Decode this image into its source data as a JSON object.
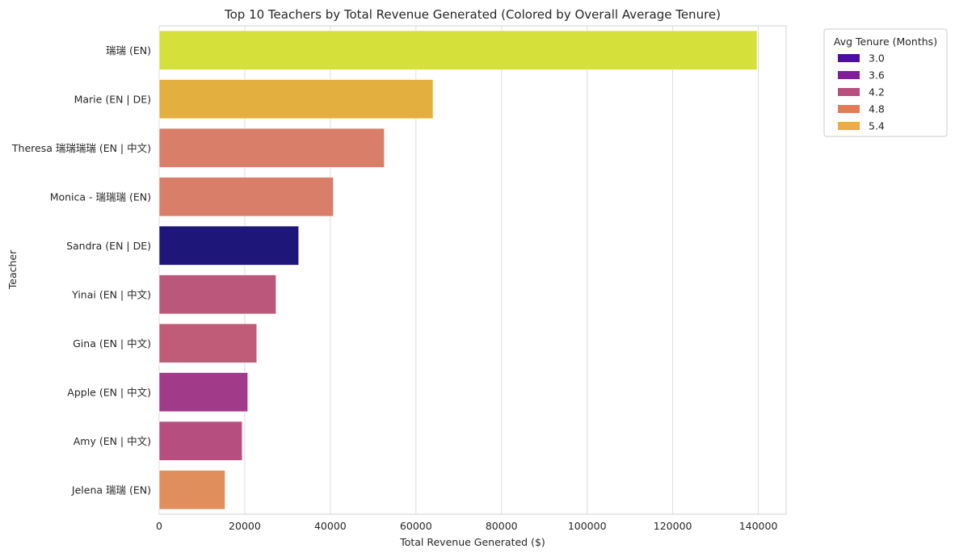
{
  "chart_data": {
    "type": "bar",
    "orientation": "horizontal",
    "title": "Top 10 Teachers by Total Revenue Generated (Colored by Overall Average Tenure)",
    "xlabel": "Total Revenue Generated ($)",
    "ylabel": "Teacher",
    "xlim": [
      0,
      146500
    ],
    "xticks": [
      0,
      20000,
      40000,
      60000,
      80000,
      100000,
      120000,
      140000
    ],
    "grid": "vertical",
    "categories": [
      "瑞瑞 (EN)",
      "Marie (EN | DE)",
      "Theresa 瑞瑞瑞瑞 (EN | 中文)",
      "Monica - 瑞瑞瑞 (EN)",
      "Sandra (EN | DE)",
      "Yinai (EN | 中文)",
      "Gina (EN | 中文)",
      "Apple (EN | 中文)",
      "Amy (EN | 中文)",
      "Jelena 瑞瑞 (EN)"
    ],
    "values": [
      139700,
      64000,
      52600,
      40700,
      32600,
      27300,
      22800,
      20700,
      19400,
      15400
    ],
    "bar_colors": [
      "#d6e03b",
      "#e3b03f",
      "#d97e69",
      "#d97e69",
      "#1e1679",
      "#bc577c",
      "#c05c78",
      "#a13a88",
      "#b64f80",
      "#e08e5b"
    ],
    "legend": {
      "title": "Avg Tenure (Months)",
      "placement": "outside-top-right",
      "entries": [
        {
          "label": "3.0",
          "color": "#4c0f9e"
        },
        {
          "label": "3.6",
          "color": "#801f99"
        },
        {
          "label": "4.2",
          "color": "#b84f7e"
        },
        {
          "label": "4.8",
          "color": "#e27c58"
        },
        {
          "label": "5.4",
          "color": "#ecac3f"
        }
      ]
    }
  }
}
